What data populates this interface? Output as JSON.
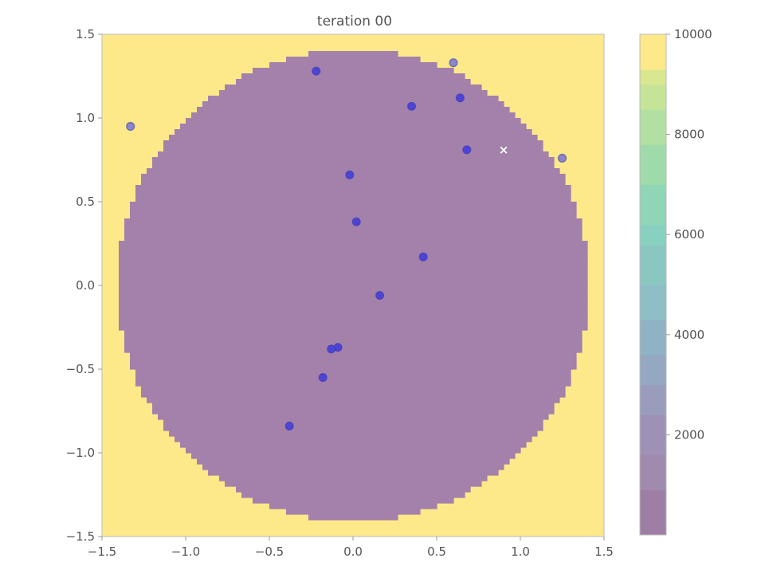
{
  "chart_data": {
    "type": "heatmap",
    "title": "teration 00",
    "xlabel": "",
    "ylabel": "",
    "xlim": [
      -1.5,
      1.5
    ],
    "ylim": [
      -1.5,
      1.5
    ],
    "x_ticks": [
      "−1.5",
      "−1.0",
      "−0.5",
      "0.0",
      "0.5",
      "1.0",
      "1.5"
    ],
    "x_tick_values": [
      -1.5,
      -1.0,
      -0.5,
      0.0,
      0.5,
      1.0,
      1.5
    ],
    "y_ticks": [
      "1.5",
      "1.0",
      "0.5",
      "0.0",
      "−0.5",
      "−1.0",
      "−1.5"
    ],
    "y_tick_values": [
      1.5,
      1.0,
      0.5,
      0.0,
      -0.5,
      -1.0,
      -1.5
    ],
    "grid": false,
    "field": {
      "description_value_inside": 0,
      "value_outside": 10000,
      "boundary_radius": 1.41,
      "inside_color": "#a381ab",
      "outside_color": "#fde98a"
    },
    "points": [
      {
        "x": -1.33,
        "y": 0.95,
        "color": "#8a86c9"
      },
      {
        "x": -0.22,
        "y": 1.28,
        "color": "#4d44d6"
      },
      {
        "x": 0.6,
        "y": 1.33,
        "color": "#8a86c9"
      },
      {
        "x": 0.35,
        "y": 1.07,
        "color": "#4d44d6"
      },
      {
        "x": 0.64,
        "y": 1.12,
        "color": "#4d44d6"
      },
      {
        "x": 0.68,
        "y": 0.81,
        "color": "#4d44d6"
      },
      {
        "x": 1.25,
        "y": 0.76,
        "color": "#8a86c9"
      },
      {
        "x": -0.02,
        "y": 0.66,
        "color": "#4d44d6"
      },
      {
        "x": 0.02,
        "y": 0.38,
        "color": "#4d44d6"
      },
      {
        "x": 0.42,
        "y": 0.17,
        "color": "#4d44d6"
      },
      {
        "x": 0.16,
        "y": -0.06,
        "color": "#4d44d6"
      },
      {
        "x": -0.09,
        "y": -0.37,
        "color": "#4d44d6"
      },
      {
        "x": -0.13,
        "y": -0.38,
        "color": "#4d44d6"
      },
      {
        "x": -0.18,
        "y": -0.55,
        "color": "#4d44d6"
      },
      {
        "x": -0.38,
        "y": -0.84,
        "color": "#4d44d6"
      }
    ],
    "marker": {
      "x": 0.9,
      "y": 0.81,
      "symbol": "×",
      "color": "#ffffff"
    },
    "colorbar": {
      "range": [
        0,
        10000
      ],
      "ticks": [
        "10000",
        "8000",
        "6000",
        "4000",
        "2000"
      ],
      "tick_values": [
        10000,
        8000,
        6000,
        4000,
        2000
      ],
      "bands": [
        {
          "from": 0,
          "to": 900,
          "color": "#9f7ea6"
        },
        {
          "from": 900,
          "to": 1600,
          "color": "#a08aae"
        },
        {
          "from": 1600,
          "to": 2400,
          "color": "#9f91b5"
        },
        {
          "from": 2400,
          "to": 3000,
          "color": "#9a9cbb"
        },
        {
          "from": 3000,
          "to": 3600,
          "color": "#94a8c1"
        },
        {
          "from": 3600,
          "to": 4300,
          "color": "#8fb3c4"
        },
        {
          "from": 4300,
          "to": 5000,
          "color": "#8ebec6"
        },
        {
          "from": 5000,
          "to": 5800,
          "color": "#8ac7c1"
        },
        {
          "from": 5800,
          "to": 6200,
          "color": "#88d0bf"
        },
        {
          "from": 6200,
          "to": 7000,
          "color": "#90d5b6"
        },
        {
          "from": 7000,
          "to": 7800,
          "color": "#9fdbaa"
        },
        {
          "from": 7800,
          "to": 8500,
          "color": "#b2e0a2"
        },
        {
          "from": 8500,
          "to": 9000,
          "color": "#c5e498"
        },
        {
          "from": 9000,
          "to": 9300,
          "color": "#d8e790"
        },
        {
          "from": 9300,
          "to": 10000,
          "color": "#fde98a"
        }
      ]
    }
  }
}
